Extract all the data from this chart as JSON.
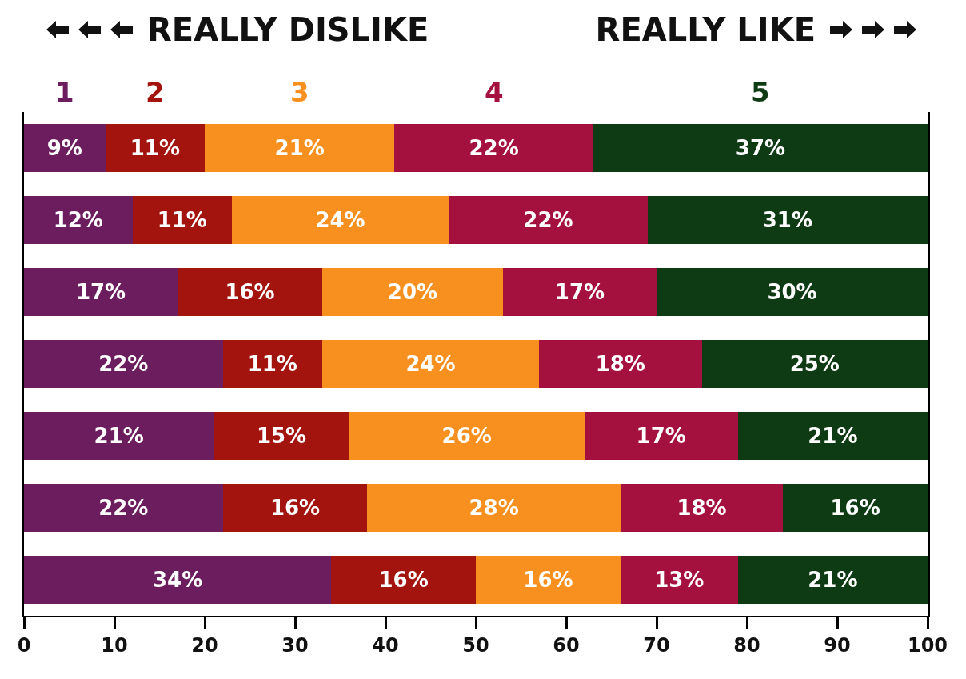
{
  "chart_data": {
    "type": "bar",
    "orientation": "horizontal",
    "stacked": true,
    "annotations": [
      "REALLY DISLIKE",
      "REALLY LIKE"
    ],
    "categories": [
      null,
      null,
      null,
      null,
      null,
      null,
      null
    ],
    "series": [
      {
        "name": "1",
        "color": "#6b1d5e",
        "values": [
          9,
          12,
          17,
          22,
          21,
          22,
          34
        ],
        "value_labels": [
          "9%",
          "12%",
          "17%",
          "22%",
          "21%",
          "22%",
          "34%"
        ]
      },
      {
        "name": "2",
        "color": "#a3140f",
        "values": [
          11,
          11,
          16,
          11,
          15,
          16,
          16
        ],
        "value_labels": [
          "11%",
          "11%",
          "16%",
          "11%",
          "15%",
          "16%",
          "16%"
        ]
      },
      {
        "name": "3",
        "color": "#f7901e",
        "values": [
          21,
          24,
          20,
          24,
          26,
          28,
          16
        ],
        "value_labels": [
          "21%",
          "24%",
          "20%",
          "24%",
          "26%",
          "28%",
          "16%"
        ]
      },
      {
        "name": "4",
        "color": "#a5113f",
        "values": [
          22,
          22,
          17,
          18,
          17,
          18,
          13
        ],
        "value_labels": [
          "22%",
          "22%",
          "17%",
          "18%",
          "17%",
          "18%",
          "13%"
        ]
      },
      {
        "name": "5",
        "color": "#0e3b13",
        "values": [
          37,
          31,
          30,
          25,
          21,
          16,
          21
        ],
        "value_labels": [
          "37%",
          "31%",
          "30%",
          "25%",
          "21%",
          "16%",
          "21%"
        ]
      }
    ],
    "xlim": [
      0,
      100
    ],
    "xticks": [
      0,
      10,
      20,
      30,
      40,
      50,
      60,
      70,
      80,
      90,
      100
    ],
    "tick_labels": "x",
    "grid": false,
    "legend": "top"
  }
}
